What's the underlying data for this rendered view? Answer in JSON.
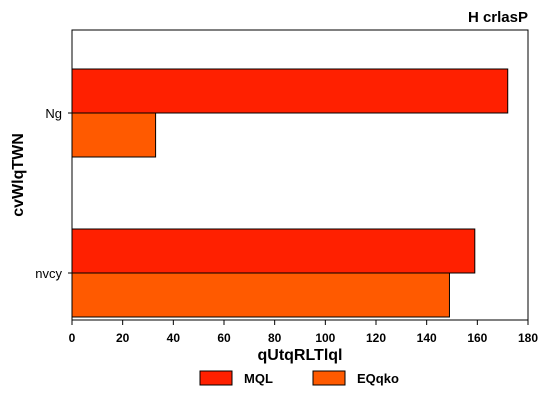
{
  "chart_data": {
    "type": "bar",
    "orientation": "horizontal",
    "title": "H crlasP",
    "xlabel": "qUtqRLTlql",
    "ylabel": "cvWlqTWN",
    "categories": [
      "Ng",
      "nvcy"
    ],
    "series": [
      {
        "name": "MQL",
        "color": "#ff2000",
        "values": [
          172,
          159
        ]
      },
      {
        "name": "EQqko",
        "color": "#ff5a00",
        "values": [
          33,
          149
        ]
      }
    ],
    "xlim": [
      0,
      180
    ],
    "xticks": [
      0,
      20,
      40,
      60,
      80,
      100,
      120,
      140,
      160,
      180
    ],
    "grid": false,
    "legend_position": "bottom-center"
  }
}
